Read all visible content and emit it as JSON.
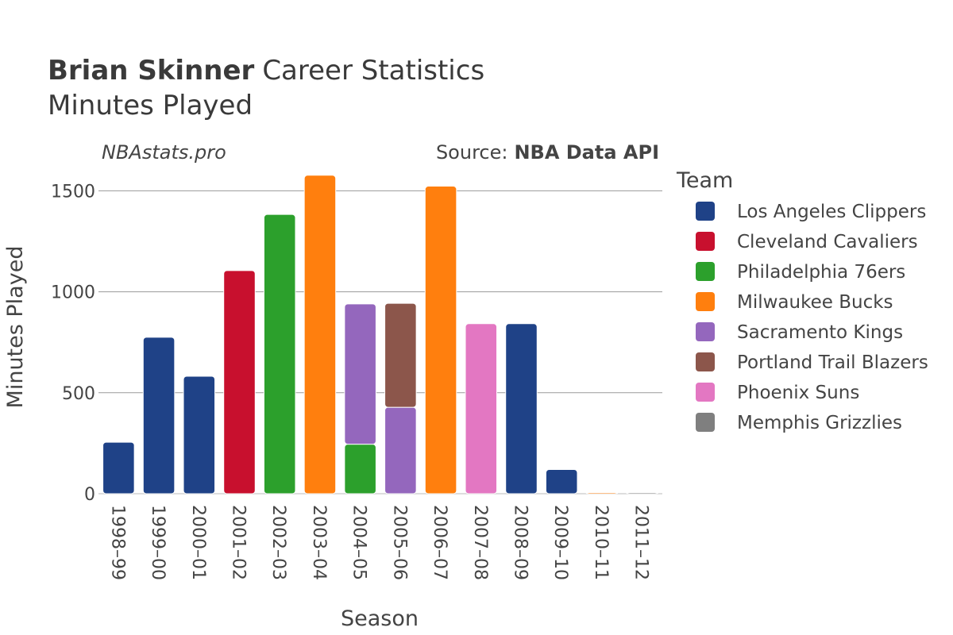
{
  "header": {
    "title_bold": "Brian Skinner",
    "title_rest": "Career Statistics",
    "subtitle": "Minutes Played",
    "credit_left": "NBAstats.pro",
    "credit_source_label": "Source:",
    "credit_source_value": "NBA Data API"
  },
  "chart_data": {
    "type": "bar",
    "stacked": true,
    "xlabel": "Season",
    "ylabel": "Minutes Played",
    "ylim": [
      0,
      1650
    ],
    "yticks": [
      0,
      500,
      1000,
      1500
    ],
    "grid": true,
    "legend_title": "Team",
    "legend_position": "right",
    "categories": [
      "1998–99",
      "1999–00",
      "2000–01",
      "2001–02",
      "2002–03",
      "2003–04",
      "2004–05",
      "2005–06",
      "2006–07",
      "2007–08",
      "2008–09",
      "2009–10",
      "2010–11",
      "2011–12"
    ],
    "series": [
      {
        "name": "Los Angeles Clippers",
        "color": "#1f4287",
        "values": [
          255,
          775,
          582,
          0,
          0,
          0,
          0,
          0,
          0,
          0,
          842,
          120,
          0,
          0
        ]
      },
      {
        "name": "Cleveland Cavaliers",
        "color": "#c8102e",
        "values": [
          0,
          0,
          0,
          1105,
          0,
          0,
          0,
          0,
          0,
          0,
          0,
          0,
          0,
          0
        ]
      },
      {
        "name": "Philadelphia 76ers",
        "color": "#2ca02c",
        "values": [
          0,
          0,
          0,
          0,
          1383,
          0,
          245,
          0,
          0,
          0,
          0,
          0,
          0,
          0
        ]
      },
      {
        "name": "Milwaukee Bucks",
        "color": "#ff7f0e",
        "values": [
          0,
          0,
          0,
          0,
          0,
          1577,
          0,
          0,
          1523,
          0,
          0,
          0,
          4,
          0
        ]
      },
      {
        "name": "Sacramento Kings",
        "color": "#9467bd",
        "values": [
          0,
          0,
          0,
          0,
          0,
          0,
          695,
          428,
          0,
          0,
          0,
          0,
          0,
          0
        ]
      },
      {
        "name": "Portland Trail Blazers",
        "color": "#8c564b",
        "values": [
          0,
          0,
          0,
          0,
          0,
          0,
          0,
          515,
          0,
          0,
          0,
          0,
          0,
          0
        ]
      },
      {
        "name": "Phoenix Suns",
        "color": "#e377c2",
        "values": [
          0,
          0,
          0,
          0,
          0,
          0,
          0,
          0,
          0,
          842,
          0,
          0,
          0,
          0
        ]
      },
      {
        "name": "Memphis Grizzlies",
        "color": "#7f7f7f",
        "values": [
          0,
          0,
          0,
          0,
          0,
          0,
          0,
          0,
          0,
          0,
          0,
          0,
          0,
          3
        ]
      }
    ]
  }
}
